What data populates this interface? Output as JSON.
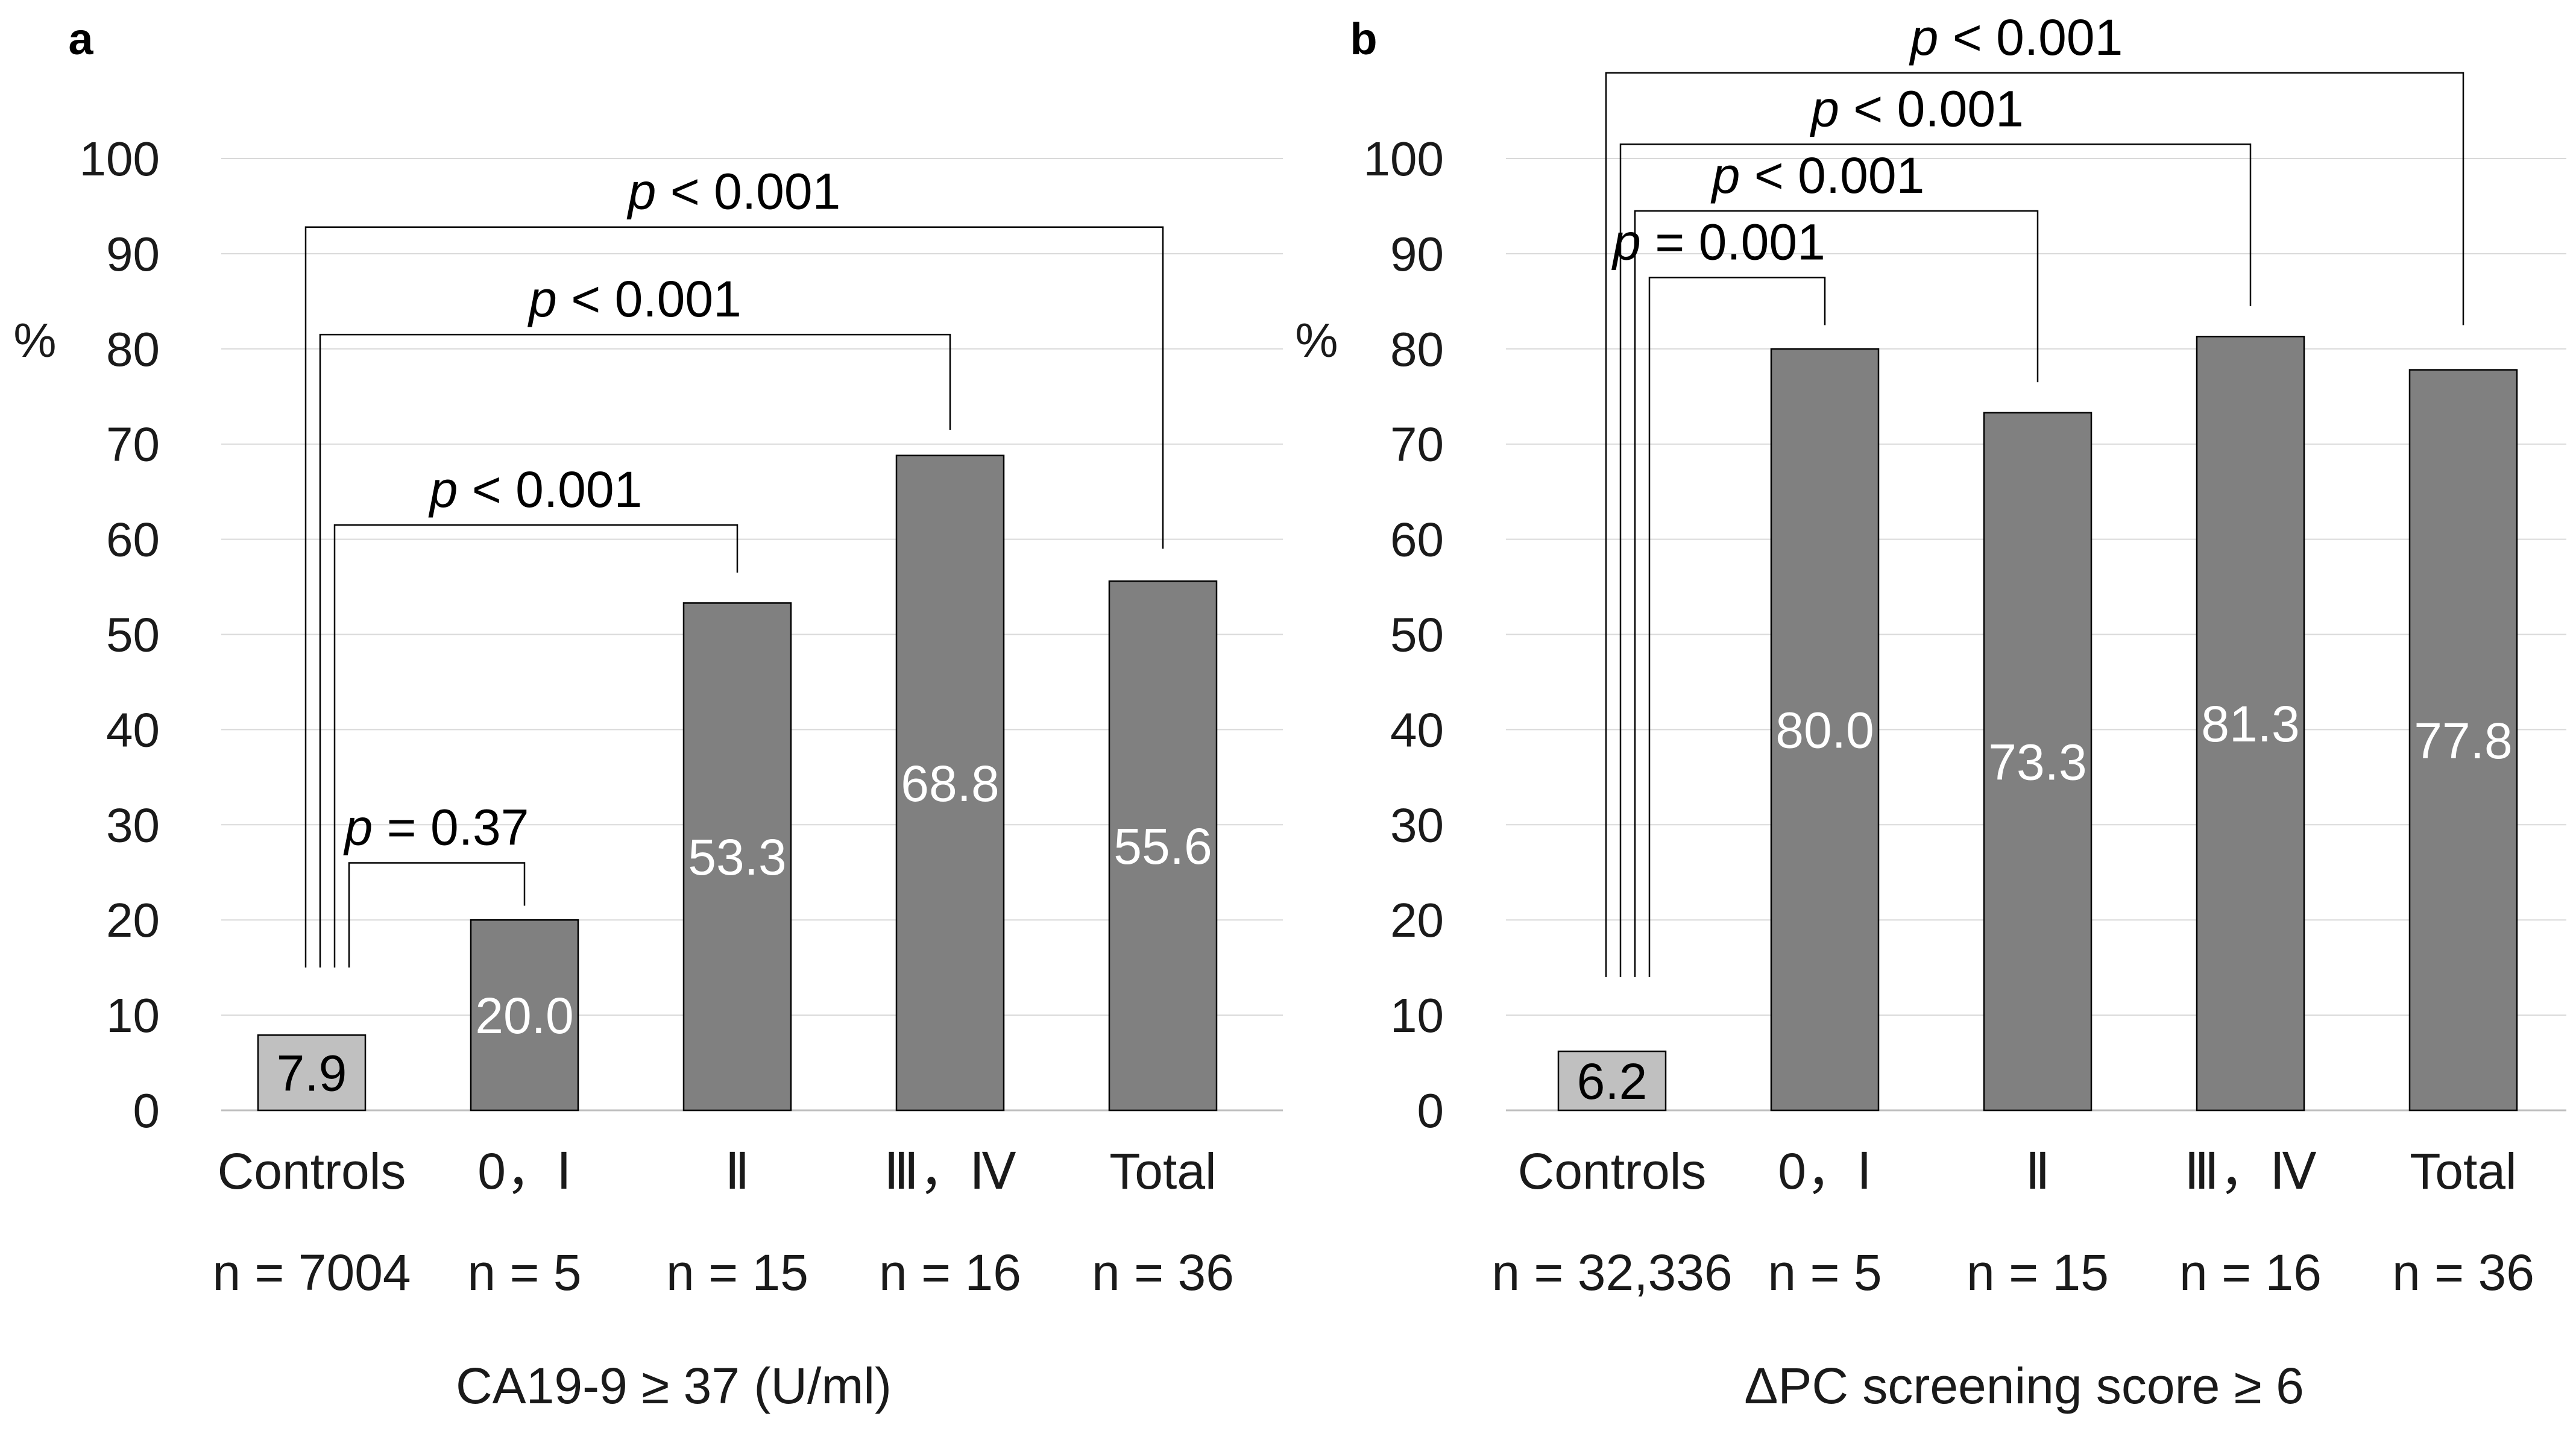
{
  "chart_data": [
    {
      "panel_label": "a",
      "type": "bar",
      "title": "",
      "xlabel": "CA19-9 ≥ 37 (U/ml)",
      "ylabel": "%",
      "ylim": [
        0,
        100
      ],
      "yticks": [
        0,
        10,
        20,
        30,
        40,
        50,
        60,
        70,
        80,
        90,
        100
      ],
      "grid": true,
      "categories": [
        "Controls",
        "0，Ⅰ",
        "Ⅱ",
        "Ⅲ，Ⅳ",
        "Total"
      ],
      "n_labels": [
        "n = 7004",
        "n = 5",
        "n = 15",
        "n = 16",
        "n = 36"
      ],
      "values": [
        7.9,
        20.0,
        53.3,
        68.8,
        55.6
      ],
      "value_labels": [
        "7.9",
        "20.0",
        "53.3",
        "68.8",
        "55.6"
      ],
      "bar_colors": [
        "#c0c0c0",
        "#808080",
        "#808080",
        "#808080",
        "#808080"
      ],
      "value_label_colors": [
        "#000000",
        "#ffffff",
        "#ffffff",
        "#ffffff",
        "#ffffff"
      ],
      "comparisons": [
        {
          "from": 0,
          "to": 1,
          "label_p": "p",
          "label_rest": " = 0.37",
          "level": 26,
          "target_top": 21.5
        },
        {
          "from": 0,
          "to": 2,
          "label_p": "p",
          "label_rest": " < 0.001",
          "level": 61.5,
          "target_top": 56.5
        },
        {
          "from": 0,
          "to": 3,
          "label_p": "p",
          "label_rest": " < 0.001",
          "level": 81.5,
          "target_top": 71.5
        },
        {
          "from": 0,
          "to": 4,
          "label_p": "p",
          "label_rest": " < 0.001",
          "level": 92.8,
          "target_top": 59
        }
      ]
    },
    {
      "panel_label": "b",
      "type": "bar",
      "title": "",
      "xlabel": "ΔPC screening score ≥ 6",
      "ylabel": "%",
      "ylim": [
        0,
        100
      ],
      "yticks": [
        0,
        10,
        20,
        30,
        40,
        50,
        60,
        70,
        80,
        90,
        100
      ],
      "grid": true,
      "categories": [
        "Controls",
        "0，Ⅰ",
        "Ⅱ",
        "Ⅲ，Ⅳ",
        "Total"
      ],
      "n_labels": [
        "n = 32,336",
        "n = 5",
        "n = 15",
        "n = 16",
        "n = 36"
      ],
      "values": [
        6.2,
        80.0,
        73.3,
        81.3,
        77.8
      ],
      "value_labels": [
        "6.2",
        "80.0",
        "73.3",
        "81.3",
        "77.8"
      ],
      "bar_colors": [
        "#c0c0c0",
        "#808080",
        "#808080",
        "#808080",
        "#808080"
      ],
      "value_label_colors": [
        "#000000",
        "#ffffff",
        "#ffffff",
        "#ffffff",
        "#ffffff"
      ],
      "comparisons": [
        {
          "from": 0,
          "to": 1,
          "label_p": "p",
          "label_rest": " = 0.001",
          "level": 87.5,
          "target_top": 82.5
        },
        {
          "from": 0,
          "to": 2,
          "label_p": "p",
          "label_rest": " < 0.001",
          "level": 94.5,
          "target_top": 76.5
        },
        {
          "from": 0,
          "to": 3,
          "label_p": "p",
          "label_rest": " < 0.001",
          "level": 101.5,
          "target_top": 84.5
        },
        {
          "from": 0,
          "to": 4,
          "label_p": "p",
          "label_rest": " < 0.001",
          "level": 109,
          "target_top": 82.5
        }
      ]
    }
  ]
}
